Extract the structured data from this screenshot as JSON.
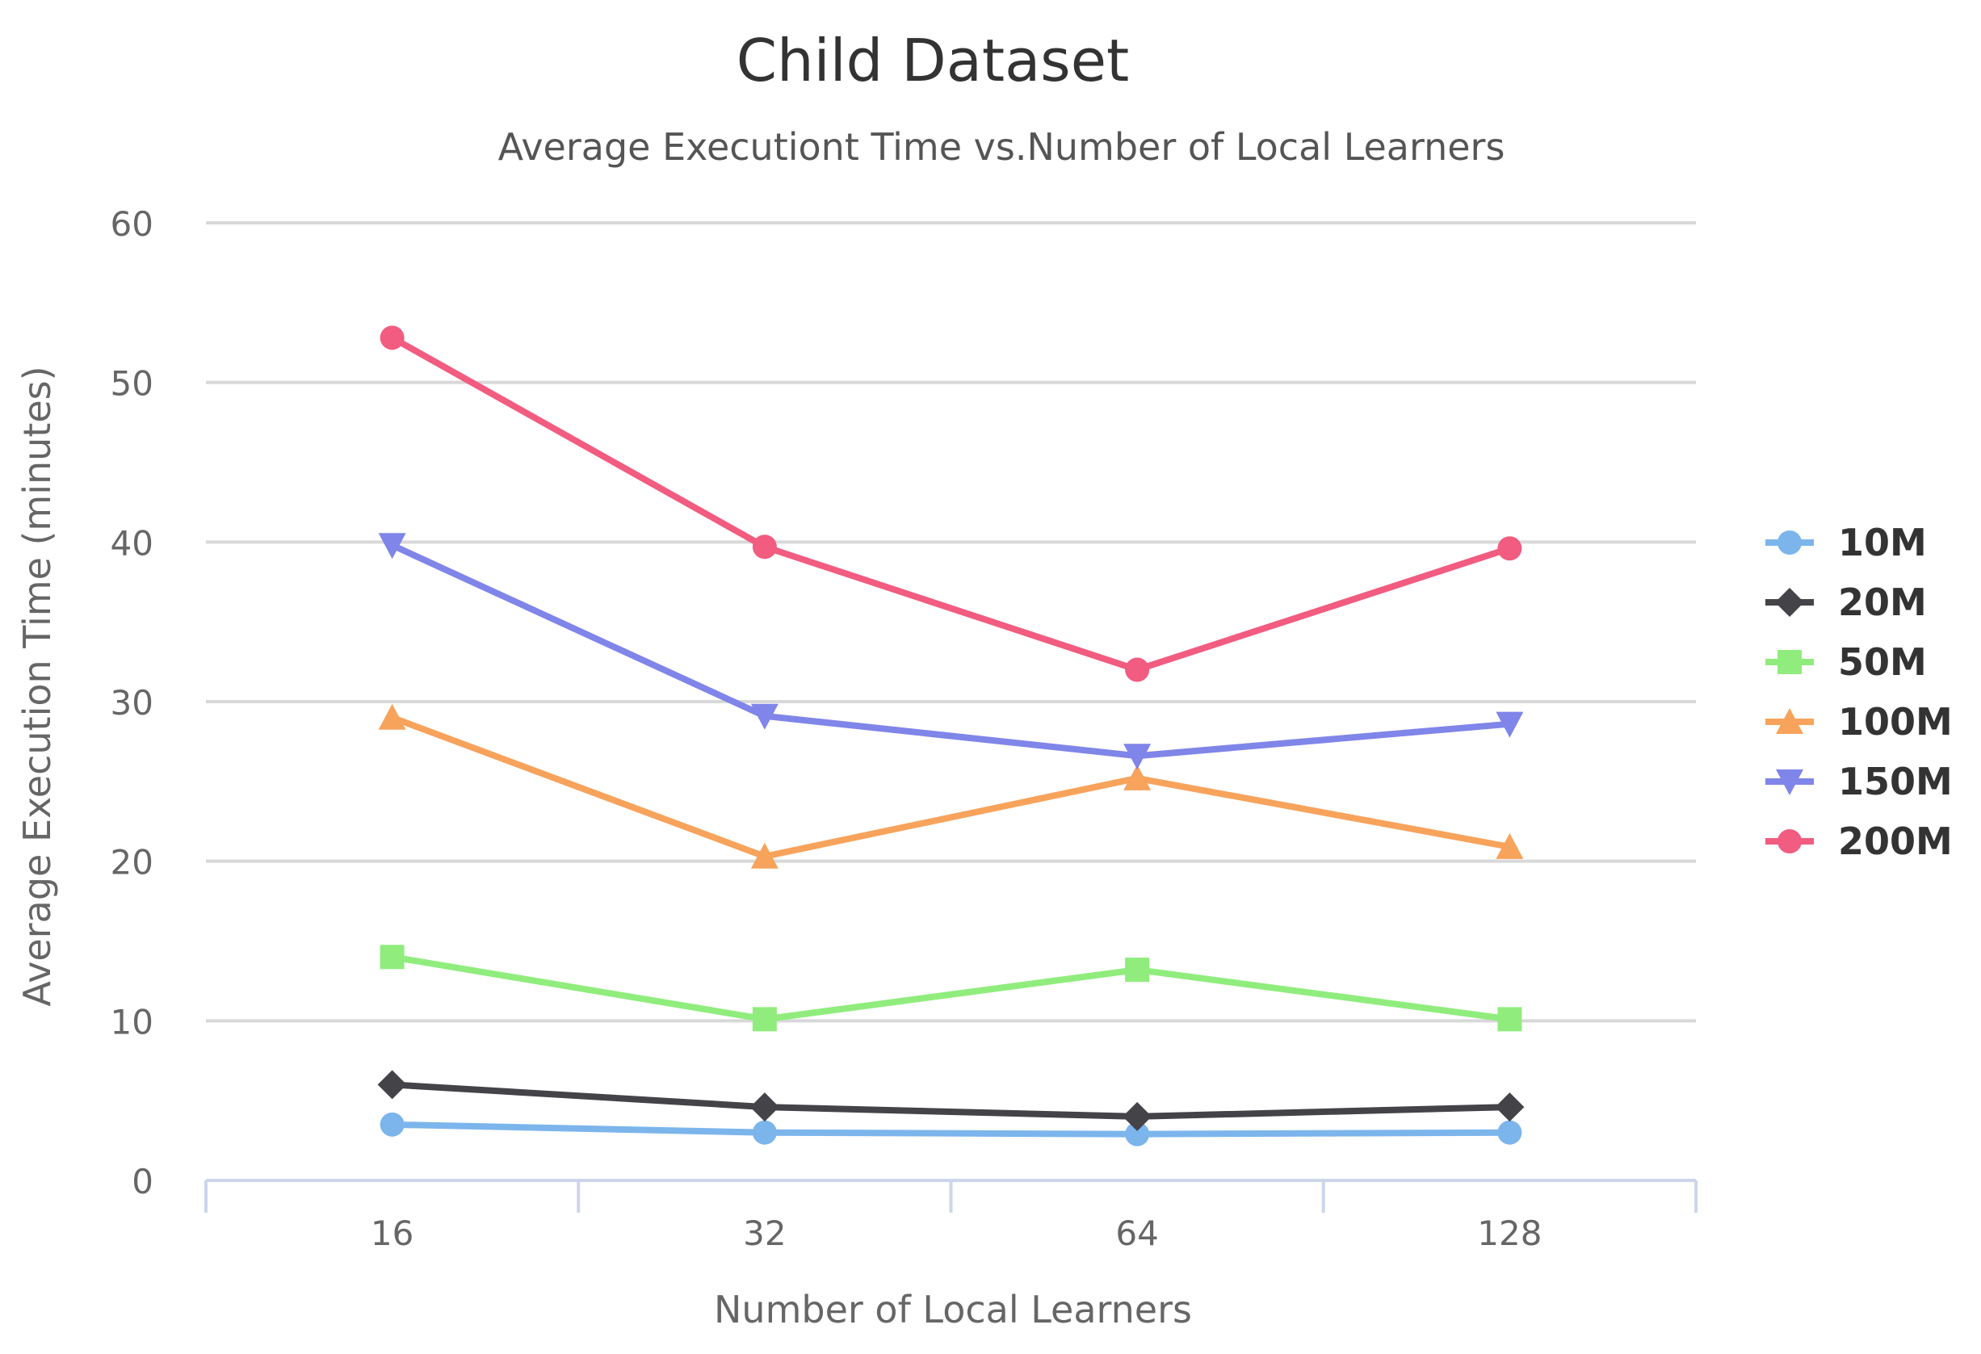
{
  "chart_data": {
    "type": "line",
    "title": "Child Dataset",
    "subtitle": "Average Executiont Time vs.Number of Local Learners",
    "xlabel": "Number of Local Learners",
    "ylabel": "Average Execution Time (minutes)",
    "categories": [
      "16",
      "32",
      "64",
      "128"
    ],
    "ylim": [
      0,
      60
    ],
    "yticks": [
      0,
      10,
      20,
      30,
      40,
      50,
      60
    ],
    "grid": true,
    "legend_position": "right",
    "series": [
      {
        "name": "10M",
        "color": "#7cb5ec",
        "marker": "circle",
        "values": [
          3.5,
          3.0,
          2.9,
          3.0
        ]
      },
      {
        "name": "20M",
        "color": "#434348",
        "marker": "diamond",
        "values": [
          6.0,
          4.6,
          4.0,
          4.6
        ]
      },
      {
        "name": "50M",
        "color": "#90ed7d",
        "marker": "square",
        "values": [
          14.0,
          10.1,
          13.2,
          10.1
        ]
      },
      {
        "name": "100M",
        "color": "#f7a35c",
        "marker": "triangle",
        "values": [
          29.0,
          20.3,
          25.2,
          20.9
        ]
      },
      {
        "name": "150M",
        "color": "#8085e9",
        "marker": "triangle-down",
        "values": [
          39.8,
          29.1,
          26.6,
          28.6
        ]
      },
      {
        "name": "200M",
        "color": "#f15c80",
        "marker": "circle",
        "values": [
          52.8,
          39.7,
          32.0,
          39.6
        ]
      }
    ]
  }
}
